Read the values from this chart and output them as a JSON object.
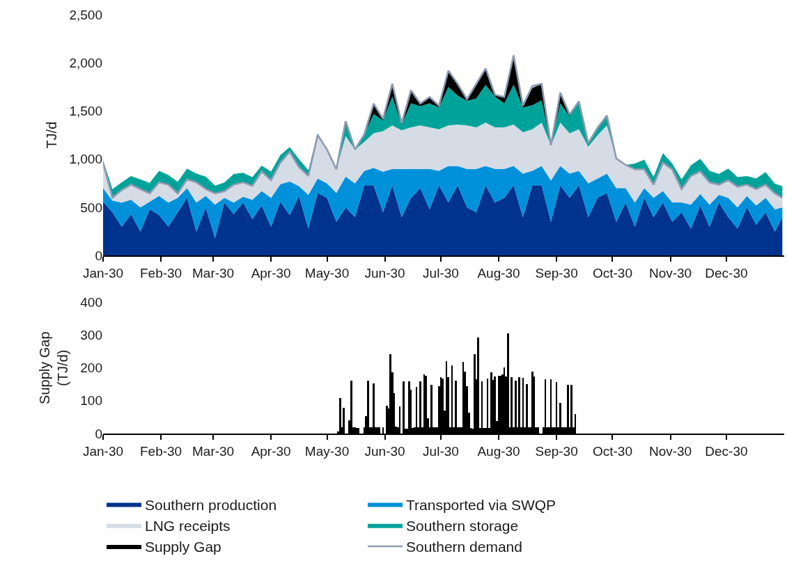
{
  "chart_data": [
    {
      "type": "area",
      "stacked": true,
      "ylabel": "TJ/d",
      "legend": "bottom",
      "x": [
        "2030-01-01",
        "2030-01-06",
        "2030-01-11",
        "2030-01-16",
        "2030-01-21",
        "2030-01-26",
        "2030-01-31",
        "2030-02-05",
        "2030-02-10",
        "2030-02-15",
        "2030-02-20",
        "2030-02-25",
        "2030-03-02",
        "2030-03-07",
        "2030-03-12",
        "2030-03-17",
        "2030-03-22",
        "2030-03-27",
        "2030-04-01",
        "2030-04-06",
        "2030-04-11",
        "2030-04-16",
        "2030-04-21",
        "2030-04-26",
        "2030-05-01",
        "2030-05-06",
        "2030-05-11",
        "2030-05-16",
        "2030-05-21",
        "2030-05-26",
        "2030-05-31",
        "2030-06-05",
        "2030-06-10",
        "2030-06-15",
        "2030-06-20",
        "2030-06-25",
        "2030-06-30",
        "2030-07-05",
        "2030-07-10",
        "2030-07-15",
        "2030-07-20",
        "2030-07-25",
        "2030-07-30",
        "2030-08-04",
        "2030-08-09",
        "2030-08-14",
        "2030-08-19",
        "2030-08-24",
        "2030-08-29",
        "2030-09-03",
        "2030-09-08",
        "2030-09-13",
        "2030-09-18",
        "2030-09-23",
        "2030-09-28",
        "2030-10-03",
        "2030-10-08",
        "2030-10-13",
        "2030-10-18",
        "2030-10-23",
        "2030-10-28",
        "2030-11-02",
        "2030-11-07",
        "2030-11-12",
        "2030-11-17",
        "2030-11-22",
        "2030-11-27",
        "2030-12-02",
        "2030-12-07",
        "2030-12-12",
        "2030-12-17",
        "2030-12-22",
        "2030-12-27",
        "2030-12-31"
      ],
      "series": [
        {
          "name": "Southern production",
          "color": "#00338d",
          "values": [
            560,
            450,
            300,
            430,
            250,
            480,
            420,
            300,
            450,
            600,
            250,
            500,
            180,
            550,
            430,
            550,
            380,
            520,
            300,
            560,
            420,
            620,
            280,
            650,
            600,
            350,
            500,
            400,
            730,
            730,
            450,
            730,
            400,
            600,
            700,
            480,
            730,
            550,
            730,
            500,
            450,
            730,
            550,
            600,
            730,
            400,
            730,
            730,
            350,
            730,
            600,
            730,
            400,
            600,
            650,
            350,
            550,
            300,
            600,
            400,
            550,
            350,
            450,
            280,
            520,
            300,
            550,
            400,
            280,
            500,
            320,
            450,
            250,
            400
          ]
        },
        {
          "name": "Transported via SWQP",
          "color": "#0091da",
          "values": [
            140,
            120,
            250,
            150,
            250,
            80,
            200,
            250,
            150,
            100,
            300,
            120,
            350,
            50,
            120,
            60,
            200,
            150,
            300,
            180,
            350,
            100,
            350,
            150,
            150,
            300,
            320,
            350,
            150,
            180,
            420,
            170,
            500,
            300,
            200,
            420,
            150,
            380,
            200,
            400,
            450,
            200,
            350,
            300,
            200,
            450,
            150,
            200,
            430,
            200,
            250,
            150,
            350,
            200,
            200,
            350,
            150,
            250,
            100,
            200,
            120,
            200,
            100,
            250,
            120,
            230,
            80,
            200,
            220,
            120,
            200,
            150,
            230,
            100
          ]
        },
        {
          "name": "LNG receipts",
          "color": "#d5dce6",
          "values": [
            260,
            30,
            130,
            156,
            190,
            85,
            140,
            186,
            45,
            93,
            210,
            70,
            115,
            68,
            186,
            150,
            145,
            203,
            182,
            224,
            307,
            198,
            197,
            450,
            350,
            245,
            420,
            350,
            300,
            360,
            420,
            450,
            400,
            430,
            450,
            430,
            430,
            420,
            430,
            450,
            430,
            450,
            430,
            430,
            430,
            430,
            430,
            450,
            365,
            450,
            420,
            430,
            380,
            450,
            500,
            309,
            241,
            345,
            195,
            136,
            294,
            345,
            140,
            297,
            233,
            230,
            106,
            182,
            214,
            116,
            170,
            136,
            165,
            100
          ]
        },
        {
          "name": "Southern storage",
          "color": "#00a39a",
          "values": [
            30,
            90,
            80,
            90,
            100,
            110,
            120,
            100,
            120,
            110,
            90,
            130,
            80,
            90,
            110,
            100,
            90,
            60,
            90,
            80,
            50,
            80,
            60,
            20,
            0,
            0,
            120,
            0,
            79,
            200,
            110,
            300,
            55,
            250,
            200,
            250,
            227,
            400,
            300,
            255,
            300,
            390,
            320,
            250,
            412,
            257,
            250,
            230,
            0,
            200,
            176,
            290,
            38,
            77,
            102,
            0,
            0,
            60,
            100,
            80,
            100,
            60,
            100,
            110,
            130,
            120,
            110,
            120,
            100,
            90,
            110,
            130,
            100,
            120
          ]
        },
        {
          "name": "Supply Gap",
          "color": "#000000",
          "values": [
            0,
            0,
            0,
            0,
            0,
            0,
            0,
            0,
            0,
            0,
            0,
            0,
            0,
            0,
            0,
            0,
            0,
            0,
            0,
            0,
            0,
            0,
            0,
            0,
            0,
            0,
            35,
            0,
            0,
            107,
            18,
            132,
            18,
            134,
            27,
            65,
            18,
            168,
            122,
            18,
            152,
            171,
            18,
            65,
            305,
            18,
            179,
            172,
            0,
            111,
            18,
            0,
            0,
            0,
            0,
            0,
            0,
            0,
            0,
            0,
            0,
            0,
            0,
            0,
            0,
            0,
            0,
            0,
            0,
            0,
            0,
            0,
            0,
            0
          ]
        },
        {
          "name": "Southern demand",
          "type": "line",
          "color": "#8d9ab0",
          "values": [
            960,
            600,
            680,
            736,
            690,
            645,
            760,
            736,
            645,
            793,
            760,
            690,
            645,
            668,
            736,
            760,
            725,
            873,
            782,
            964,
            1077,
            918,
            827,
            1250,
            1100,
            895,
            1395,
            1100,
            1259,
            1577,
            1418,
            1782,
            1373,
            1714,
            1577,
            1645,
            1555,
            1918,
            1782,
            1623,
            1782,
            1941,
            1668,
            1645,
            2077,
            1555,
            1759,
            1782,
            1145,
            1691,
            1464,
            1600,
            1168,
            1327,
            1452,
            1009,
            941,
            895,
            895,
            736,
            964,
            895,
            690,
            827,
            873,
            760,
            736,
            782,
            714,
            736,
            690,
            736,
            645,
            600
          ]
        }
      ],
      "xlim": [
        "2030-01-01",
        "2031-01-01"
      ],
      "xticks": [
        {
          "value": "2030-01-01",
          "label": "Jan-30"
        },
        {
          "value": "2030-02-01",
          "label": "Feb-30"
        },
        {
          "value": "2030-03-01",
          "label": "Mar-30"
        },
        {
          "value": "2030-04-01",
          "label": "Apr-30"
        },
        {
          "value": "2030-05-01",
          "label": "May-30"
        },
        {
          "value": "2030-06-01",
          "label": "Jun-30"
        },
        {
          "value": "2030-07-01",
          "label": "Jul-30"
        },
        {
          "value": "2030-08-01",
          "label": "Aug-30"
        },
        {
          "value": "2030-09-01",
          "label": "Sep-30"
        },
        {
          "value": "2030-10-01",
          "label": "Oct-30"
        },
        {
          "value": "2030-11-01",
          "label": "Nov-30"
        },
        {
          "value": "2030-12-01",
          "label": "Dec-30"
        }
      ],
      "ylim": [
        0,
        2500
      ],
      "yticks": [
        0,
        500,
        {
          "value": 1000,
          "label": "1,000"
        },
        {
          "value": 1500,
          "label": "1,500"
        },
        {
          "value": 2000,
          "label": "2,000"
        },
        {
          "value": 2500,
          "label": "2,500"
        }
      ]
    },
    {
      "type": "bar",
      "ylabel": "Supply Gap (TJ/d)",
      "x": [
        "2030-05-07",
        "2030-05-08",
        "2030-05-09",
        "2030-05-10",
        "2030-05-11",
        "2030-05-12",
        "2030-05-13",
        "2030-05-14",
        "2030-05-15",
        "2030-05-16",
        "2030-05-17",
        "2030-05-18",
        "2030-05-19",
        "2030-05-20",
        "2030-05-21",
        "2030-05-22",
        "2030-05-23",
        "2030-05-24",
        "2030-05-25",
        "2030-05-26",
        "2030-05-27",
        "2030-05-28",
        "2030-05-29",
        "2030-05-30",
        "2030-05-31",
        "2030-06-01",
        "2030-06-02",
        "2030-06-03",
        "2030-06-04",
        "2030-06-05",
        "2030-06-06",
        "2030-06-07",
        "2030-06-08",
        "2030-06-09",
        "2030-06-10",
        "2030-06-11",
        "2030-06-12",
        "2030-06-13",
        "2030-06-14",
        "2030-06-15",
        "2030-06-16",
        "2030-06-17",
        "2030-06-18",
        "2030-06-19",
        "2030-06-20",
        "2030-06-21",
        "2030-06-22",
        "2030-06-23",
        "2030-06-24",
        "2030-06-25",
        "2030-06-26",
        "2030-06-27",
        "2030-06-28",
        "2030-06-29",
        "2030-06-30",
        "2030-07-01",
        "2030-07-02",
        "2030-07-03",
        "2030-07-04",
        "2030-07-05",
        "2030-07-06",
        "2030-07-07",
        "2030-07-08",
        "2030-07-09",
        "2030-07-10",
        "2030-07-11",
        "2030-07-12",
        "2030-07-13",
        "2030-07-14",
        "2030-07-15",
        "2030-07-16",
        "2030-07-17",
        "2030-07-18",
        "2030-07-19",
        "2030-07-20",
        "2030-07-21",
        "2030-07-22",
        "2030-07-23",
        "2030-07-24",
        "2030-07-25",
        "2030-07-26",
        "2030-07-27",
        "2030-07-28",
        "2030-07-29",
        "2030-07-30",
        "2030-07-31",
        "2030-08-01",
        "2030-08-02",
        "2030-08-03",
        "2030-08-04",
        "2030-08-05",
        "2030-08-06",
        "2030-08-07",
        "2030-08-08",
        "2030-08-09",
        "2030-08-10",
        "2030-08-11",
        "2030-08-12",
        "2030-08-13",
        "2030-08-14",
        "2030-08-15",
        "2030-08-16",
        "2030-08-17",
        "2030-08-18",
        "2030-08-19",
        "2030-08-20",
        "2030-08-21",
        "2030-08-22",
        "2030-08-23",
        "2030-08-24",
        "2030-08-25",
        "2030-08-26",
        "2030-08-27",
        "2030-08-28",
        "2030-08-29",
        "2030-08-30",
        "2030-08-31",
        "2030-09-01",
        "2030-09-02",
        "2030-09-03",
        "2030-09-04",
        "2030-09-05",
        "2030-09-06",
        "2030-09-07",
        "2030-09-08",
        "2030-09-09",
        "2030-09-10",
        "2030-09-11",
        "2030-09-12"
      ],
      "series": [
        {
          "color": "#000000",
          "values": [
            5,
            108,
            18,
            77,
            0,
            0,
            39,
            161,
            18,
            18,
            17,
            17,
            0,
            0,
            18,
            53,
            161,
            18,
            18,
            153,
            19,
            19,
            19,
            0,
            18,
            0,
            85,
            75,
            240,
            186,
            123,
            20,
            18,
            83,
            0,
            158,
            15,
            15,
            158,
            134,
            16,
            18,
            142,
            18,
            159,
            18,
            179,
            176,
            46,
            18,
            147,
            18,
            18,
            18,
            143,
            171,
            166,
            70,
            219,
            171,
            18,
            207,
            18,
            161,
            18,
            18,
            18,
            218,
            187,
            143,
            63,
            16,
            15,
            241,
            165,
            291,
            16,
            158,
            16,
            16,
            167,
            16,
            185,
            163,
            173,
            38,
            175,
            175,
            179,
            201,
            174,
            305,
            18,
            171,
            18,
            161,
            18,
            171,
            18,
            169,
            18,
            149,
            18,
            18,
            189,
            173,
            19,
            19,
            0,
            0,
            19,
            165,
            18,
            18,
            165,
            18,
            18,
            157,
            18,
            93,
            18,
            18,
            18,
            147,
            18,
            147,
            18,
            58,
            0
          ]
        }
      ],
      "xlim": [
        "2030-01-01",
        "2031-01-01"
      ],
      "xticks": [
        {
          "value": "2030-01-01",
          "label": "Jan-30"
        },
        {
          "value": "2030-02-01",
          "label": "Feb-30"
        },
        {
          "value": "2030-03-01",
          "label": "Mar-30"
        },
        {
          "value": "2030-04-01",
          "label": "Apr-30"
        },
        {
          "value": "2030-05-01",
          "label": "May-30"
        },
        {
          "value": "2030-06-01",
          "label": "Jun-30"
        },
        {
          "value": "2030-07-01",
          "label": "Jul-30"
        },
        {
          "value": "2030-08-01",
          "label": "Aug-30"
        },
        {
          "value": "2030-09-01",
          "label": "Sep-30"
        },
        {
          "value": "2030-10-01",
          "label": "Oct-30"
        },
        {
          "value": "2030-11-01",
          "label": "Nov-30"
        },
        {
          "value": "2030-12-01",
          "label": "Dec-30"
        }
      ],
      "ylim": [
        0,
        400
      ],
      "yticks": [
        0,
        100,
        200,
        300,
        400
      ]
    }
  ]
}
